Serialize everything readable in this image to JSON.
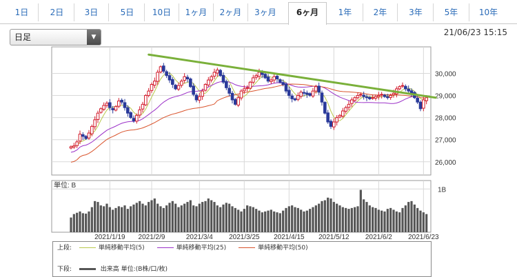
{
  "tabs": [
    {
      "label": "1日"
    },
    {
      "label": "2日"
    },
    {
      "label": "3日"
    },
    {
      "label": "5日"
    },
    {
      "label": "10日"
    },
    {
      "label": "1ヶ月"
    },
    {
      "label": "2ヶ月"
    },
    {
      "label": "3ヶ月"
    },
    {
      "label": "6ヶ月",
      "active": true
    },
    {
      "label": "1年"
    },
    {
      "label": "2年"
    },
    {
      "label": "3年"
    },
    {
      "label": "5年"
    },
    {
      "label": "10年"
    }
  ],
  "period_select": {
    "value": "日足"
  },
  "timestamp": "21/06/23 15:15",
  "volume_panel": {
    "unit_label": "単位: B",
    "axis_label": "1B"
  },
  "legend": {
    "upper_label": "上段:",
    "lower_label": "下段:",
    "upper_items": [
      {
        "label": "単純移動平均(5)",
        "color": "#b8c84a"
      },
      {
        "label": "単純移動平均(25)",
        "color": "#9b30c8"
      },
      {
        "label": "単純移動平均(50)",
        "color": "#d9522a"
      }
    ],
    "lower_item": {
      "label": "出来高 単位:(B株/口/枚)",
      "color": "#555555"
    }
  },
  "colors": {
    "up": "#d21a2a",
    "down": "#2a3a9a",
    "trendline": "#7ab03a"
  },
  "chart_data": {
    "type": "candlestick",
    "price_ticks": [
      26000,
      27000,
      28000,
      29000,
      30000
    ],
    "price_tick_labels": [
      "26,000",
      "27,000",
      "28,000",
      "29,000",
      "30,000"
    ],
    "ylim": [
      25400,
      31200
    ],
    "date_labels": [
      {
        "label": "2021/1/19",
        "index": 13
      },
      {
        "label": "2021/2/9",
        "index": 27
      },
      {
        "label": "2021/3/4",
        "index": 43
      },
      {
        "label": "2021/3/25",
        "index": 58
      },
      {
        "label": "2021/4/15",
        "index": 73
      },
      {
        "label": "2021/5/12",
        "index": 88
      },
      {
        "label": "2021/6/2",
        "index": 103
      },
      {
        "label": "2021/6/23",
        "index": 118
      }
    ],
    "closes": [
      26680,
      26720,
      26900,
      27250,
      27150,
      27050,
      27300,
      27600,
      27900,
      28200,
      28400,
      28550,
      28650,
      28450,
      28350,
      28500,
      28750,
      28700,
      28450,
      28200,
      28000,
      27850,
      28100,
      28350,
      28600,
      29000,
      29200,
      29500,
      29650,
      30050,
      30300,
      30100,
      29900,
      29700,
      29500,
      29300,
      29450,
      29650,
      29850,
      29750,
      29400,
      29050,
      28800,
      28950,
      29200,
      29500,
      29700,
      29850,
      30050,
      30150,
      29900,
      29600,
      29350,
      29100,
      28800,
      28600,
      28900,
      29200,
      29300,
      29350,
      29600,
      29800,
      29900,
      30050,
      29950,
      29800,
      29650,
      29700,
      29850,
      29750,
      29600,
      29500,
      29200,
      29000,
      28850,
      28800,
      29000,
      29150,
      29100,
      29050,
      29000,
      29200,
      29400,
      29150,
      28700,
      28200,
      27800,
      27600,
      27800,
      28000,
      28100,
      28300,
      28450,
      28600,
      28800,
      28900,
      29000,
      29050,
      28950,
      28900,
      28850,
      28900,
      28950,
      29000,
      29050,
      28950,
      28900,
      29000,
      29100,
      29300,
      29400,
      29450,
      29300,
      29200,
      29100,
      28900,
      28700,
      28400,
      28800,
      28900
    ],
    "volumes": [
      0.34,
      0.42,
      0.45,
      0.48,
      0.44,
      0.43,
      0.48,
      0.58,
      0.72,
      0.7,
      0.62,
      0.6,
      0.66,
      0.58,
      0.52,
      0.56,
      0.6,
      0.58,
      0.62,
      0.54,
      0.6,
      0.64,
      0.68,
      0.72,
      0.66,
      0.62,
      0.7,
      0.74,
      0.78,
      0.66,
      0.6,
      0.56,
      0.62,
      0.68,
      0.72,
      0.66,
      0.58,
      0.62,
      0.66,
      0.7,
      0.74,
      0.62,
      0.6,
      0.66,
      0.7,
      0.72,
      0.78,
      0.74,
      0.7,
      0.62,
      0.58,
      0.64,
      0.68,
      0.66,
      0.6,
      0.56,
      0.52,
      0.48,
      0.54,
      0.62,
      0.6,
      0.58,
      0.54,
      0.5,
      0.46,
      0.48,
      0.5,
      0.52,
      0.48,
      0.46,
      0.44,
      0.5,
      0.56,
      0.6,
      0.62,
      0.58,
      0.56,
      0.52,
      0.48,
      0.5,
      0.54,
      0.58,
      0.62,
      0.66,
      0.72,
      0.74,
      0.8,
      0.78,
      0.7,
      0.66,
      0.62,
      0.58,
      0.56,
      0.54,
      0.56,
      0.58,
      0.6,
      0.98,
      0.76,
      0.7,
      0.62,
      0.58,
      0.56,
      0.52,
      0.5,
      0.48,
      0.54,
      0.56,
      0.52,
      0.48,
      0.46,
      0.56,
      0.62,
      0.7,
      0.72,
      0.64,
      0.56,
      0.5,
      0.46,
      0.42
    ],
    "trendline": [
      {
        "index": 26,
        "value": 30850
      },
      {
        "index": 127,
        "value": 28900
      }
    ],
    "volume_ylim": [
      0,
      1.1
    ]
  }
}
